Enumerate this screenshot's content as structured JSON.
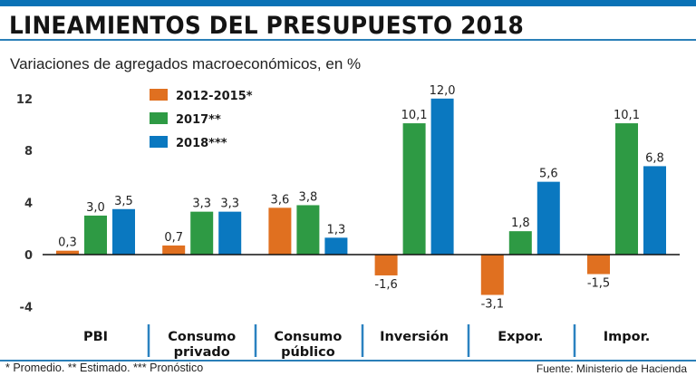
{
  "header": {
    "title": "LINEAMIENTOS DEL PRESUPUESTO 2018",
    "subtitle": "Variaciones de agregados macroeconómicos, en %"
  },
  "footer": {
    "footnote": "* Promedio. ** Estimado. *** Pronóstico",
    "source": "Fuente: Ministerio de Hacienda"
  },
  "colors": {
    "accent": "#0a72b6",
    "series": [
      "#e07020",
      "#2e9a44",
      "#0a78c0"
    ]
  },
  "chart_data": {
    "type": "bar",
    "title": "LINEAMIENTOS DEL PRESUPUESTO 2018",
    "subtitle": "Variaciones de agregados macroeconómicos, en %",
    "xlabel": "",
    "ylabel": "",
    "categories": [
      [
        "PBI"
      ],
      [
        "Consumo",
        "privado"
      ],
      [
        "Consumo",
        "público"
      ],
      [
        "Inversión"
      ],
      [
        "Expor."
      ],
      [
        "Impor."
      ]
    ],
    "series": [
      {
        "name": "2012-2015*",
        "values": [
          0.3,
          0.7,
          3.6,
          -1.6,
          -3.1,
          -1.5
        ],
        "labels": [
          "0,3",
          "0,7",
          "3,6",
          "-1,6",
          "-3,1",
          "-1,5"
        ]
      },
      {
        "name": "2017**",
        "values": [
          3.0,
          3.3,
          3.8,
          10.1,
          1.8,
          10.1
        ],
        "labels": [
          "3,0",
          "3,3",
          "3,8",
          "10,1",
          "1,8",
          "10,1"
        ]
      },
      {
        "name": "2018***",
        "values": [
          3.5,
          3.3,
          1.3,
          12.0,
          5.6,
          6.8
        ],
        "labels": [
          "3,5",
          "3,3",
          "1,3",
          "12,0",
          "5,6",
          "6,8"
        ]
      }
    ],
    "yticks": [
      12,
      8,
      4,
      0,
      -4
    ],
    "ylim": [
      -4,
      12
    ],
    "grid": false,
    "legend": "top-left"
  }
}
